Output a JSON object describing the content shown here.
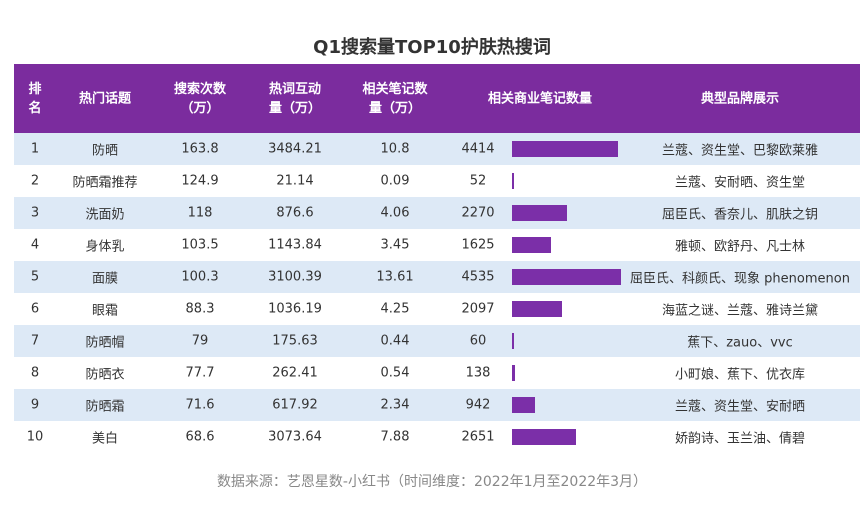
{
  "title": "Q1搜索量TOP10护肤热搜词",
  "table": {
    "header": [
      "排\n名",
      "热门话题",
      "搜索次数\n（万）",
      "热词互动\n量（万）",
      "相关笔记数\n量（万）",
      "相关商业笔记数量",
      "典型品牌展示"
    ],
    "rows": [
      [
        1,
        "防晒",
        163.8,
        3484.21,
        10.8,
        4414,
        "兰蔻、资生堂、巴黎欧莱雅"
      ],
      [
        2,
        "防晒霜推荐",
        124.9,
        21.14,
        0.09,
        52,
        "兰蔻、安耐晒、资生堂"
      ],
      [
        3,
        "洗面奶",
        118,
        876.6,
        4.06,
        2270,
        "屈臣氏、香奈儿、肌肤之钥"
      ],
      [
        4,
        "身体乳",
        103.5,
        1143.84,
        3.45,
        1625,
        "雅顿、欧舒丹、凡士林"
      ],
      [
        5,
        "面膜",
        100.3,
        3100.39,
        13.61,
        4535,
        "屈臣氏、科颜氏、现象 phenomenon"
      ],
      [
        6,
        "眼霜",
        88.3,
        1036.19,
        4.25,
        2097,
        "海蓝之谜、兰蔻、雅诗兰黛"
      ],
      [
        7,
        "防晒帽",
        79,
        175.63,
        0.44,
        60,
        "蕉下、zauo、vvc"
      ],
      [
        8,
        "防晒衣",
        77.7,
        262.41,
        0.54,
        138,
        "小町娘、蕉下、优衣库"
      ],
      [
        9,
        "防晒霜",
        71.6,
        617.92,
        2.34,
        942,
        "兰蔻、资生堂、安耐晒"
      ],
      [
        10,
        "美白",
        68.6,
        3073.64,
        7.88,
        2651,
        "娇韵诗、玉兰油、倩碧"
      ]
    ]
  },
  "footer": "数据来源：艺恩星数-小红书（时间维度：2022年1月至2022年3月）"
}
